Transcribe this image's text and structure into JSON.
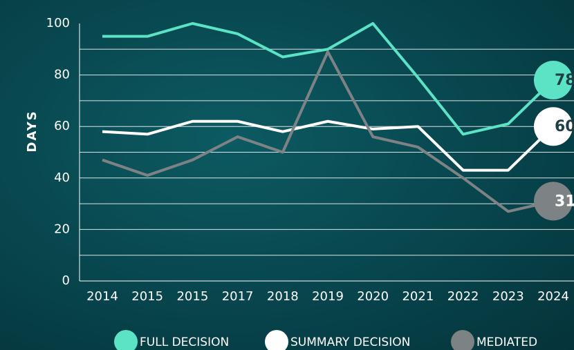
{
  "chart_data": {
    "type": "line",
    "y_label": "DAYS",
    "categories": [
      "2014",
      "2015",
      "2015",
      "2017",
      "2018",
      "2019",
      "2020",
      "2021",
      "2022",
      "2023",
      "2024"
    ],
    "series": [
      {
        "name": "FULL DECISION",
        "color": "#5ce3c6",
        "values": [
          95,
          95,
          100,
          96,
          87,
          90,
          100,
          79,
          57,
          61,
          78
        ]
      },
      {
        "name": "SUMMARY DECISION",
        "color": "#ffffff",
        "values": [
          58,
          57,
          62,
          62,
          58,
          62,
          59,
          60,
          43,
          43,
          60
        ]
      },
      {
        "name": "MEDIATED",
        "color": "#7d8385",
        "values": [
          47,
          41,
          47,
          56,
          50,
          89,
          56,
          52,
          40,
          27,
          31
        ]
      }
    ],
    "ylim": [
      0,
      100
    ],
    "yticks": [
      0,
      20,
      40,
      60,
      80,
      100
    ],
    "grid": true,
    "grid_lines": [
      10,
      20,
      30,
      40,
      50,
      60,
      70,
      80,
      90
    ],
    "end_labels": true
  }
}
